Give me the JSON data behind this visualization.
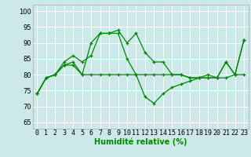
{
  "xlabel": "Humidité relative (%)",
  "ylabel_ticks": [
    65,
    70,
    75,
    80,
    85,
    90,
    95,
    100
  ],
  "xlim": [
    -0.5,
    23.5
  ],
  "ylim": [
    63,
    102
  ],
  "bg_color": "#cce8e8",
  "grid_color": "#ffffff",
  "line_color": "#008800",
  "lines": [
    [
      74,
      79,
      80,
      83,
      84,
      80,
      90,
      93,
      93,
      94,
      90,
      93,
      87,
      84,
      84,
      80,
      80,
      79,
      79,
      80,
      79,
      84,
      80,
      91
    ],
    [
      74,
      79,
      80,
      83,
      83,
      80,
      80,
      80,
      80,
      80,
      80,
      80,
      80,
      80,
      80,
      80,
      80,
      79,
      79,
      79,
      79,
      79,
      80,
      80
    ],
    [
      74,
      79,
      80,
      84,
      86,
      84,
      86,
      93,
      93,
      93,
      85,
      80,
      73,
      71,
      74,
      76,
      77,
      78,
      79,
      79,
      79,
      84,
      80,
      91
    ]
  ],
  "xlabel_fontsize": 7,
  "tick_fontsize": 6,
  "xlabel_fontweight": "bold",
  "xlabel_color": "#008800",
  "figwidth": 3.2,
  "figheight": 2.0,
  "dpi": 100
}
